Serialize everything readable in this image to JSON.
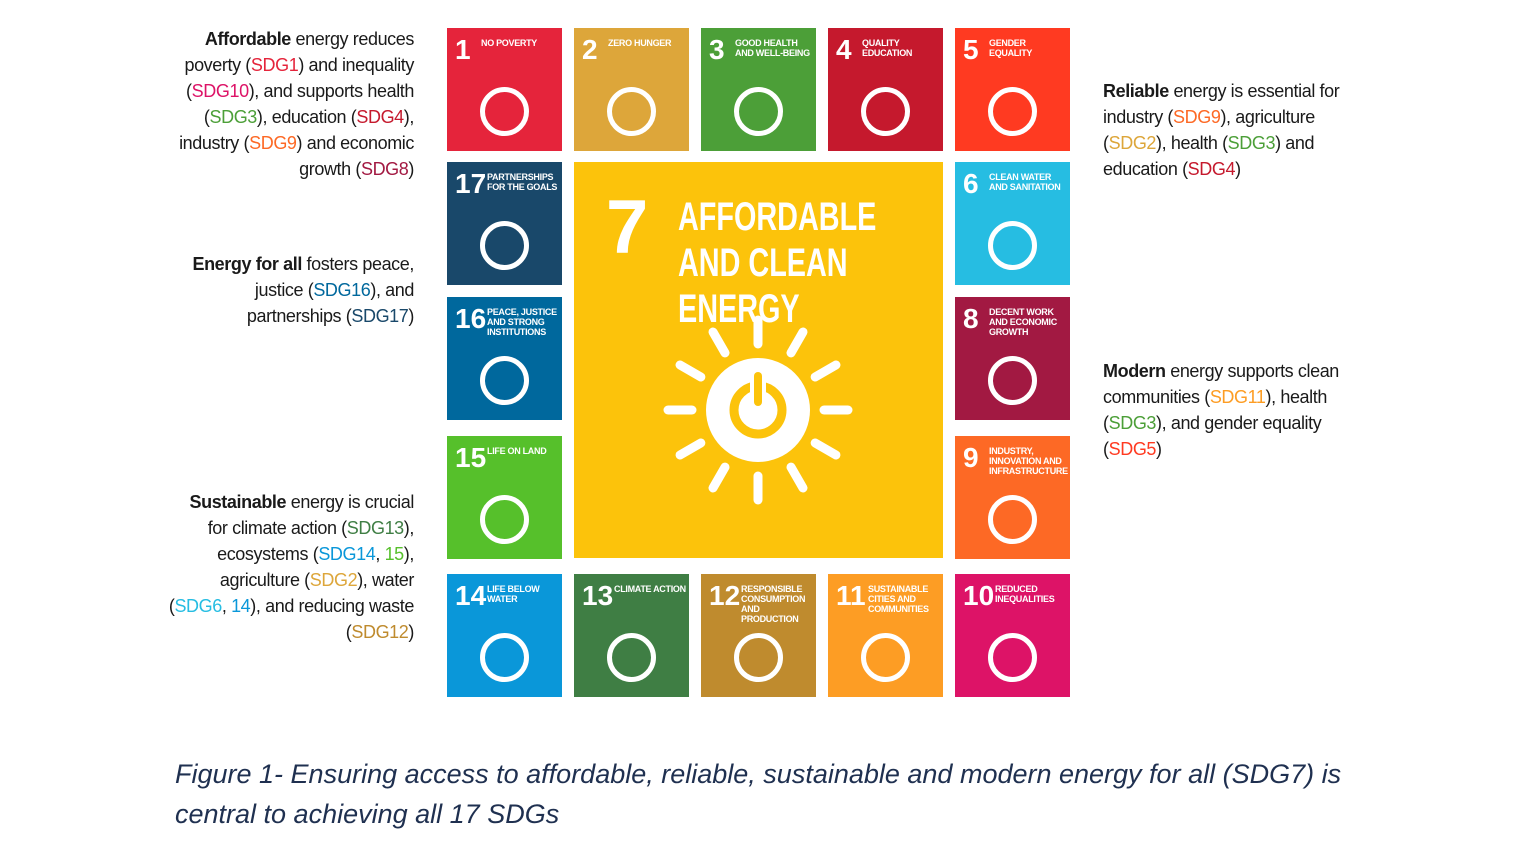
{
  "annotations": [
    {
      "runs": [
        {
          "text": "Affordable",
          "bold": true
        },
        {
          "text": " energy reduces poverty ("
        },
        {
          "text": "SDG1",
          "color": "#e5243b"
        },
        {
          "text": ") and inequality ("
        },
        {
          "text": "SDG10",
          "color": "#dd1367"
        },
        {
          "text": "), and supports health ("
        },
        {
          "text": "SDG3",
          "color": "#4c9f38"
        },
        {
          "text": "), education ("
        },
        {
          "text": "SDG4",
          "color": "#c5192d"
        },
        {
          "text": "), industry ("
        },
        {
          "text": "SDG9",
          "color": "#fd6925"
        },
        {
          "text": ") and economic growth ("
        },
        {
          "text": "SDG8",
          "color": "#a21942"
        },
        {
          "text": ")"
        }
      ]
    },
    {
      "runs": [
        {
          "text": "Energy for all",
          "bold": true
        },
        {
          "text": " fosters peace, justice ("
        },
        {
          "text": "SDG16",
          "color": "#00689d"
        },
        {
          "text": "), and partnerships ("
        },
        {
          "text": "SDG17",
          "color": "#19486a"
        },
        {
          "text": ")"
        }
      ]
    },
    {
      "runs": [
        {
          "text": "Sustainable",
          "bold": true
        },
        {
          "text": " energy is crucial for climate action ("
        },
        {
          "text": "SDG13",
          "color": "#3f7e44"
        },
        {
          "text": "), ecosystems ("
        },
        {
          "text": "SDG14",
          "color": "#0a97d9"
        },
        {
          "text": ", "
        },
        {
          "text": "15",
          "color": "#56c02b"
        },
        {
          "text": "), agriculture ("
        },
        {
          "text": "SDG2",
          "color": "#dda63a"
        },
        {
          "text": "), water ("
        },
        {
          "text": "SDG6",
          "color": "#26bde2"
        },
        {
          "text": ", "
        },
        {
          "text": "14",
          "color": "#0a97d9"
        },
        {
          "text": "), and reducing waste ("
        },
        {
          "text": "SDG12",
          "color": "#bf8b2e"
        },
        {
          "text": ")"
        }
      ]
    },
    {
      "runs": [
        {
          "text": "Reliable",
          "bold": true
        },
        {
          "text": " energy is essential for industry ("
        },
        {
          "text": "SDG9",
          "color": "#fd6925"
        },
        {
          "text": "), agriculture ("
        },
        {
          "text": "SDG2",
          "color": "#dda63a"
        },
        {
          "text": "), health ("
        },
        {
          "text": "SDG3",
          "color": "#4c9f38"
        },
        {
          "text": ") and education ("
        },
        {
          "text": "SDG4",
          "color": "#c5192d"
        },
        {
          "text": ")"
        }
      ]
    },
    {
      "runs": [
        {
          "text": "Modern",
          "bold": true
        },
        {
          "text": " energy supports clean communities ("
        },
        {
          "text": "SDG11",
          "color": "#fd9d24"
        },
        {
          "text": "), health ("
        },
        {
          "text": "SDG3",
          "color": "#4c9f38"
        },
        {
          "text": "), and gender equality ("
        },
        {
          "text": "SDG5",
          "color": "#ff3a21"
        },
        {
          "text": ")"
        }
      ]
    }
  ],
  "tiles": [
    {
      "number": "1",
      "label": "NO POVERTY",
      "color": "#e5243b"
    },
    {
      "number": "2",
      "label": "ZERO HUNGER",
      "color": "#dda63a"
    },
    {
      "number": "3",
      "label": "GOOD HEALTH AND WELL-BEING",
      "color": "#4c9f38"
    },
    {
      "number": "4",
      "label": "QUALITY EDUCATION",
      "color": "#c5192d"
    },
    {
      "number": "5",
      "label": "GENDER EQUALITY",
      "color": "#ff3a21"
    },
    {
      "number": "17",
      "label": "PARTNERSHIPS FOR THE GOALS",
      "color": "#19486a"
    },
    {
      "number": "6",
      "label": "CLEAN WATER AND SANITATION",
      "color": "#26bde2"
    },
    {
      "number": "16",
      "label": "PEACE, JUSTICE AND STRONG INSTITUTIONS",
      "color": "#00689d"
    },
    {
      "number": "8",
      "label": "DECENT WORK AND ECONOMIC GROWTH",
      "color": "#a21942"
    },
    {
      "number": "15",
      "label": "LIFE ON LAND",
      "color": "#56c02b"
    },
    {
      "number": "9",
      "label": "INDUSTRY, INNOVATION AND INFRASTRUCTURE",
      "color": "#fd6925"
    },
    {
      "number": "14",
      "label": "LIFE BELOW WATER",
      "color": "#0a97d9"
    },
    {
      "number": "13",
      "label": "CLIMATE ACTION",
      "color": "#3f7e44"
    },
    {
      "number": "12",
      "label": "RESPONSIBLE CONSUMPTION AND PRODUCTION",
      "color": "#bf8b2e"
    },
    {
      "number": "11",
      "label": "SUSTAINABLE CITIES AND COMMUNITIES",
      "color": "#fd9d24"
    },
    {
      "number": "10",
      "label": "REDUCED INEQUALITIES",
      "color": "#dd1367"
    }
  ],
  "center": {
    "number": "7",
    "label": "AFFORDABLE AND CLEAN ENERGY",
    "color": "#fcc30b"
  },
  "caption": "Figure 1-  Ensuring access to affordable, reliable, sustainable and modern energy for all (SDG7) is central to achieving all 17 SDGs"
}
